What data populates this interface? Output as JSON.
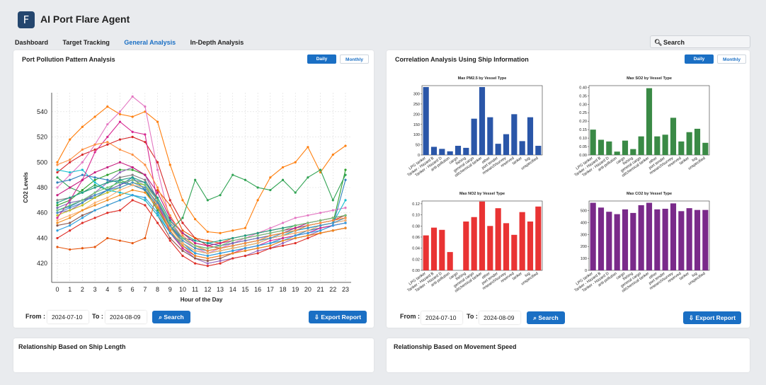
{
  "app": {
    "title": "AI Port Flare Agent",
    "logo_letter": "F"
  },
  "nav": {
    "tabs": [
      "Dashboard",
      "Target Tracking",
      "General Analysis",
      "In-Depth Analysis"
    ],
    "active": "General Analysis"
  },
  "search": {
    "label": "Search"
  },
  "panels": {
    "pollution": {
      "title": "Port Pollution Pattern Analysis",
      "toggle": [
        "Daily",
        "Monthly"
      ],
      "from_label": "From :",
      "to_label": "To :",
      "from": "2024-07-10",
      "to": "2024-08-09",
      "search_btn": "Search",
      "export_btn": "Export Report"
    },
    "correlation": {
      "title": "Correlation Analysis Using Ship Information",
      "toggle": [
        "Daily",
        "Monthly"
      ],
      "from_label": "From :",
      "to_label": "To :",
      "from": "2024-07-10",
      "to": "2024-08-09",
      "search_btn": "Search",
      "export_btn": "Export Report"
    },
    "ship_length": {
      "title": "Relationship Based on Ship Length"
    },
    "speed": {
      "title": "Relationship Based on Movement Speed"
    }
  },
  "colors": {
    "accent": "#1a6fc4",
    "pm25": "#2a56a8",
    "so2": "#3a8a46",
    "no2": "#e93333",
    "co2": "#7a2a8a"
  },
  "chart_data": [
    {
      "type": "line",
      "xlabel": "Hour of the Day",
      "ylabel": "CO2 Levels",
      "x": [
        0,
        1,
        2,
        3,
        4,
        5,
        6,
        7,
        8,
        9,
        10,
        11,
        12,
        13,
        14,
        15,
        16,
        17,
        18,
        19,
        20,
        21,
        22,
        23
      ],
      "ylim": [
        405,
        555
      ],
      "yticks": [
        420,
        440,
        460,
        480,
        500,
        520,
        540
      ],
      "grid": true,
      "series": [
        {
          "color": "#1f77b4",
          "values": [
            462,
            465,
            470,
            472,
            478,
            482,
            488,
            478,
            465,
            448,
            440,
            438,
            436,
            434,
            436,
            438,
            440,
            442,
            444,
            446,
            448,
            450,
            452,
            454
          ]
        },
        {
          "color": "#ff7f0e",
          "values": [
            500,
            518,
            528,
            536,
            544,
            538,
            536,
            540,
            532,
            498,
            470,
            455,
            445,
            444,
            446,
            448,
            470,
            488,
            496,
            500,
            512,
            492,
            506,
            513
          ]
        },
        {
          "color": "#2ca02c",
          "values": [
            466,
            470,
            478,
            486,
            490,
            494,
            494,
            490,
            470,
            448,
            436,
            430,
            428,
            430,
            432,
            434,
            436,
            440,
            442,
            446,
            448,
            450,
            452,
            494
          ]
        },
        {
          "color": "#d62728",
          "values": [
            492,
            500,
            506,
            510,
            514,
            518,
            520,
            516,
            500,
            470,
            452,
            440,
            434,
            432,
            434,
            436,
            438,
            440,
            442,
            446,
            450,
            452,
            454,
            458
          ]
        },
        {
          "color": "#9467bd",
          "values": [
            460,
            462,
            468,
            476,
            484,
            492,
            496,
            490,
            470,
            446,
            432,
            424,
            420,
            422,
            424,
            426,
            430,
            432,
            436,
            440,
            442,
            446,
            450,
            452
          ]
        },
        {
          "color": "#8c564b",
          "values": [
            450,
            452,
            458,
            462,
            466,
            470,
            474,
            470,
            458,
            440,
            430,
            424,
            422,
            424,
            428,
            430,
            432,
            434,
            438,
            440,
            442,
            444,
            446,
            448
          ]
        },
        {
          "color": "#e377c2",
          "values": [
            480,
            490,
            500,
            514,
            530,
            540,
            552,
            544,
            494,
            454,
            440,
            432,
            428,
            432,
            436,
            440,
            444,
            448,
            452,
            456,
            458,
            460,
            462,
            464
          ]
        },
        {
          "color": "#7f7f7f",
          "values": [
            470,
            472,
            476,
            480,
            484,
            488,
            490,
            486,
            470,
            450,
            440,
            434,
            430,
            432,
            434,
            436,
            438,
            440,
            442,
            444,
            446,
            448,
            450,
            452
          ]
        },
        {
          "color": "#bcbd22",
          "values": [
            458,
            462,
            466,
            472,
            476,
            480,
            484,
            482,
            466,
            448,
            438,
            432,
            430,
            432,
            434,
            436,
            438,
            442,
            444,
            448,
            450,
            452,
            454,
            456
          ]
        },
        {
          "color": "#17becf",
          "values": [
            494,
            492,
            494,
            484,
            478,
            476,
            474,
            470,
            458,
            444,
            436,
            430,
            428,
            430,
            432,
            434,
            436,
            440,
            442,
            446,
            448,
            450,
            452,
            470
          ]
        },
        {
          "color": "#e6550d",
          "values": [
            433,
            431,
            432,
            433,
            440,
            438,
            436,
            440,
            478,
            466,
            446,
            440,
            438,
            436,
            440,
            442,
            444,
            446,
            448,
            450,
            452,
            454,
            456,
            458
          ]
        },
        {
          "color": "#31a354",
          "values": [
            488,
            480,
            476,
            482,
            478,
            486,
            482,
            478,
            462,
            446,
            456,
            486,
            470,
            474,
            490,
            486,
            480,
            478,
            486,
            476,
            488,
            494,
            470,
            490
          ]
        },
        {
          "color": "#de2d26",
          "values": [
            440,
            446,
            452,
            456,
            460,
            462,
            470,
            466,
            452,
            438,
            426,
            420,
            418,
            420,
            424,
            426,
            428,
            432,
            434,
            436,
            440,
            444,
            446,
            448
          ]
        },
        {
          "color": "#3182bd",
          "values": [
            484,
            486,
            490,
            488,
            486,
            484,
            482,
            478,
            468,
            450,
            436,
            428,
            426,
            428,
            430,
            432,
            434,
            436,
            440,
            442,
            446,
            448,
            450,
            486
          ]
        },
        {
          "color": "#756bb1",
          "values": [
            464,
            468,
            470,
            474,
            478,
            482,
            486,
            484,
            470,
            452,
            440,
            434,
            432,
            434,
            436,
            438,
            440,
            442,
            444,
            448,
            450,
            452,
            454,
            456
          ]
        },
        {
          "color": "#fdae6b",
          "values": [
            454,
            458,
            462,
            468,
            472,
            478,
            482,
            480,
            466,
            448,
            436,
            430,
            428,
            430,
            432,
            434,
            436,
            440,
            442,
            444,
            446,
            450,
            452,
            454
          ]
        },
        {
          "color": "#d62790",
          "values": [
            456,
            470,
            486,
            508,
            520,
            532,
            524,
            522,
            468,
            444,
            432,
            426,
            424,
            426,
            428,
            432,
            434,
            438,
            440,
            442,
            444,
            448,
            450,
            452
          ]
        },
        {
          "color": "#2e9fdf",
          "values": [
            446,
            450,
            456,
            462,
            466,
            470,
            474,
            472,
            460,
            444,
            434,
            428,
            426,
            428,
            430,
            432,
            434,
            436,
            438,
            442,
            444,
            446,
            450,
            452
          ]
        },
        {
          "color": "#ef8a1e",
          "values": [
            452,
            456,
            462,
            466,
            470,
            474,
            478,
            476,
            464,
            446,
            434,
            426,
            424,
            426,
            428,
            430,
            432,
            434,
            438,
            440,
            442,
            444,
            446,
            448
          ]
        },
        {
          "color": "#1fa187",
          "values": [
            468,
            472,
            476,
            480,
            484,
            486,
            488,
            484,
            472,
            454,
            444,
            438,
            436,
            438,
            440,
            442,
            444,
            446,
            448,
            450,
            452,
            454,
            456,
            458
          ]
        },
        {
          "color": "#c51b7d",
          "values": [
            474,
            480,
            486,
            492,
            496,
            500,
            496,
            490,
            476,
            456,
            444,
            436,
            434,
            436,
            438,
            440,
            442,
            444,
            446,
            448,
            452,
            454,
            456,
            458
          ]
        },
        {
          "color": "#4292c6",
          "values": [
            460,
            464,
            468,
            474,
            478,
            480,
            484,
            480,
            468,
            450,
            438,
            432,
            430,
            432,
            434,
            436,
            438,
            440,
            444,
            446,
            448,
            450,
            452,
            456
          ]
        },
        {
          "color": "#fd8d3c",
          "values": [
            498,
            502,
            510,
            514,
            516,
            510,
            506,
            498,
            480,
            458,
            442,
            434,
            430,
            432,
            434,
            436,
            438,
            442,
            444,
            446,
            450,
            452,
            454,
            456
          ]
        },
        {
          "color": "#74c476",
          "values": [
            462,
            466,
            470,
            476,
            480,
            484,
            486,
            482,
            470,
            452,
            440,
            434,
            432,
            434,
            438,
            440,
            442,
            444,
            446,
            450,
            452,
            454,
            456,
            458
          ]
        }
      ]
    },
    {
      "type": "bar",
      "title": "Max PM2.5 by Vessel Type",
      "categories": [
        "LPG tanker",
        "Tanker - Hazard B",
        "Tanker - Hazard D",
        "anti-pollution",
        "cargo",
        "fishing",
        "general cargo",
        "oil/chemical tanker",
        "other",
        "port tender",
        "research/survey",
        "reserved",
        "tanker",
        "tug",
        "unspecified"
      ],
      "values": [
        333,
        40,
        30,
        18,
        45,
        35,
        178,
        333,
        185,
        55,
        102,
        200,
        68,
        185,
        45
      ],
      "ylim": [
        0,
        340
      ],
      "yticks": [
        0,
        50,
        100,
        150,
        200,
        250,
        300
      ]
    },
    {
      "type": "bar",
      "title": "Max SO2 by Vessel Type",
      "categories": [
        "LPG tanker",
        "Tanker - Hazard B",
        "Tanker - Hazard D",
        "anti-pollution",
        "cargo",
        "fishing",
        "general cargo",
        "oil/chemical tanker",
        "other",
        "port tender",
        "research/survey",
        "reserved",
        "tanker",
        "tug",
        "unspecified"
      ],
      "values": [
        0.15,
        0.09,
        0.08,
        0.02,
        0.085,
        0.035,
        0.11,
        0.395,
        0.11,
        0.12,
        0.22,
        0.08,
        0.135,
        0.155,
        0.072
      ],
      "ylim": [
        0,
        0.41
      ],
      "yticks": [
        0,
        0.05,
        0.1,
        0.15,
        0.2,
        0.25,
        0.3,
        0.35,
        0.4
      ]
    },
    {
      "type": "bar",
      "title": "Max NO2 by Vessel Type",
      "categories": [
        "LPG tanker",
        "Tanker - Hazard B",
        "Tanker - Hazard D",
        "anti-pollution",
        "cargo",
        "fishing",
        "general cargo",
        "oil/chemical tanker",
        "other",
        "port tender",
        "research/survey",
        "reserved",
        "tanker",
        "tug",
        "unspecified"
      ],
      "values": [
        0.063,
        0.077,
        0.073,
        0.033,
        0.0,
        0.088,
        0.096,
        0.124,
        0.08,
        0.112,
        0.085,
        0.064,
        0.105,
        0.088,
        0.115
      ],
      "ylim": [
        0,
        0.125
      ],
      "yticks": [
        0,
        0.02,
        0.04,
        0.06,
        0.08,
        0.1,
        0.12
      ]
    },
    {
      "type": "bar",
      "title": "Max CO2 by Vessel Type",
      "categories": [
        "LPG tanker",
        "Tanker - Hazard B",
        "Tanker - Hazard D",
        "anti-pollution",
        "cargo",
        "fishing",
        "general cargo",
        "oil/chemical tanker",
        "other",
        "port tender",
        "research/survey",
        "reserved",
        "tanker",
        "tug",
        "unspecified"
      ],
      "values": [
        565,
        525,
        490,
        470,
        510,
        480,
        545,
        565,
        510,
        515,
        560,
        495,
        520,
        505,
        505
      ],
      "ylim": [
        0,
        580
      ],
      "yticks": [
        0,
        100,
        200,
        300,
        400,
        500
      ]
    }
  ]
}
